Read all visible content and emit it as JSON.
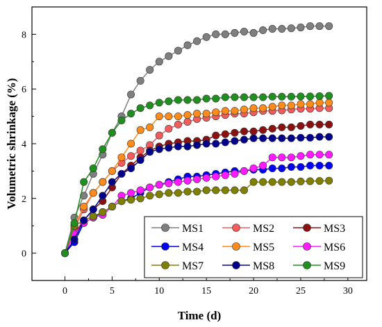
{
  "chart_data": {
    "type": "line",
    "xlabel": "Time (d)",
    "ylabel": "Volumetric shrinkage (%)",
    "xlim": [
      -3.5,
      32
    ],
    "ylim": [
      -1,
      9
    ],
    "xticks": [
      0,
      5,
      10,
      15,
      20,
      25,
      30
    ],
    "yticks": [
      0,
      2,
      4,
      6,
      8
    ],
    "x": [
      0,
      1,
      2,
      3,
      4,
      5,
      6,
      7,
      8,
      9,
      10,
      11,
      12,
      13,
      14,
      15,
      16,
      17,
      18,
      19,
      20,
      21,
      22,
      23,
      24,
      25,
      26,
      27,
      28
    ],
    "legend_position": "bottom-right",
    "series": [
      {
        "name": "MS1",
        "color": "#7f7f7f",
        "values": [
          0,
          1.3,
          2.1,
          2.9,
          3.6,
          4.4,
          5.0,
          5.8,
          6.3,
          6.7,
          7.0,
          7.2,
          7.4,
          7.6,
          7.75,
          7.9,
          8.0,
          8.0,
          8.05,
          8.1,
          8.05,
          8.15,
          8.2,
          8.2,
          8.22,
          8.25,
          8.3,
          8.3,
          8.3
        ]
      },
      {
        "name": "MS2",
        "color": "#f45b5b",
        "values": [
          0,
          0.9,
          1.6,
          2.2,
          2.6,
          3.0,
          3.3,
          3.55,
          3.75,
          3.95,
          4.3,
          4.55,
          4.7,
          4.8,
          4.9,
          4.95,
          5.0,
          5.05,
          5.1,
          5.1,
          5.15,
          5.2,
          5.2,
          5.22,
          5.25,
          5.28,
          5.28,
          5.3,
          5.3
        ]
      },
      {
        "name": "MS3",
        "color": "#8b1010",
        "values": [
          0,
          0.7,
          1.2,
          1.6,
          1.9,
          2.4,
          2.9,
          3.2,
          3.5,
          3.75,
          3.9,
          4.0,
          4.05,
          4.1,
          4.1,
          4.15,
          4.3,
          4.35,
          4.4,
          4.45,
          4.45,
          4.5,
          4.55,
          4.6,
          4.6,
          4.65,
          4.7,
          4.7,
          4.7
        ]
      },
      {
        "name": "MS4",
        "color": "#0000ee",
        "values": [
          0,
          0.4,
          1.1,
          1.3,
          1.5,
          1.7,
          1.9,
          2.0,
          2.2,
          2.4,
          2.5,
          2.6,
          2.7,
          2.8,
          2.8,
          2.85,
          2.9,
          2.95,
          3.0,
          3.0,
          3.05,
          3.05,
          3.1,
          3.1,
          3.15,
          3.15,
          3.2,
          3.2,
          3.2
        ]
      },
      {
        "name": "MS5",
        "color": "#ff8c1a",
        "values": [
          0,
          1.0,
          1.7,
          2.2,
          2.6,
          3.0,
          3.5,
          4.0,
          4.5,
          4.6,
          5.0,
          5.0,
          5.0,
          5.05,
          5.1,
          5.1,
          5.15,
          5.2,
          5.2,
          5.25,
          5.3,
          5.3,
          5.35,
          5.4,
          5.4,
          5.45,
          5.45,
          5.5,
          5.5
        ]
      },
      {
        "name": "MS6",
        "color": "#ff1aff",
        "values": [
          0,
          0.7,
          1.1,
          1.3,
          1.4,
          1.7,
          2.1,
          2.2,
          2.3,
          2.4,
          2.5,
          2.55,
          2.6,
          2.65,
          2.7,
          2.75,
          2.8,
          2.85,
          2.9,
          3.0,
          3.1,
          3.2,
          3.5,
          3.5,
          3.5,
          3.55,
          3.6,
          3.6,
          3.6
        ]
      },
      {
        "name": "MS7",
        "color": "#808000",
        "values": [
          0,
          1.0,
          1.2,
          1.35,
          1.5,
          1.7,
          1.9,
          1.95,
          2.0,
          2.1,
          2.15,
          2.2,
          2.2,
          2.25,
          2.25,
          2.3,
          2.3,
          2.3,
          2.3,
          2.3,
          2.6,
          2.6,
          2.6,
          2.6,
          2.6,
          2.62,
          2.63,
          2.64,
          2.65
        ]
      },
      {
        "name": "MS8",
        "color": "#00008b",
        "values": [
          0,
          0.5,
          1.2,
          1.6,
          2.1,
          2.6,
          2.9,
          3.1,
          3.4,
          3.7,
          3.8,
          3.85,
          3.9,
          3.9,
          3.95,
          4.0,
          4.0,
          4.05,
          4.1,
          4.15,
          4.2,
          4.2,
          4.2,
          4.2,
          4.2,
          4.22,
          4.22,
          4.25,
          4.25
        ]
      },
      {
        "name": "MS9",
        "color": "#1f8f1f",
        "values": [
          0,
          1.1,
          2.6,
          3.1,
          3.8,
          4.4,
          4.85,
          5.1,
          5.3,
          5.4,
          5.5,
          5.55,
          5.6,
          5.6,
          5.6,
          5.65,
          5.65,
          5.7,
          5.7,
          5.7,
          5.7,
          5.7,
          5.72,
          5.72,
          5.72,
          5.73,
          5.73,
          5.74,
          5.75
        ]
      }
    ]
  }
}
